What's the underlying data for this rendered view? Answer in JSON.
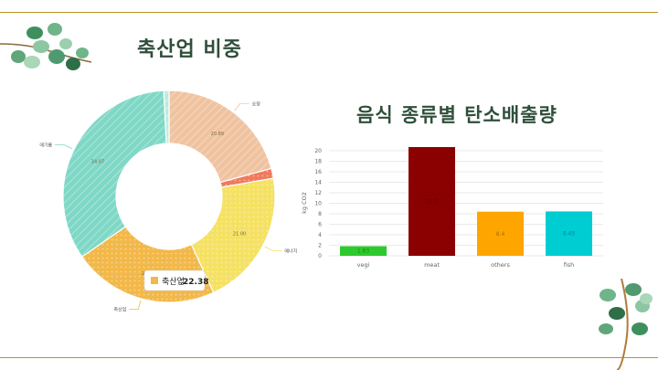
{
  "page": {
    "left_title": "축산업 비중",
    "right_title": "음식 종류별 탄소배출량"
  },
  "colors": {
    "rule": "#b8941f",
    "title": "#2f4f3a",
    "leaf": "#4f9a6e",
    "stem": "#b07a3a"
  },
  "icons": [
    "eucalyptus-branch-top-left",
    "eucalyptus-branch-bottom-right"
  ],
  "chart_data": [
    {
      "type": "pie",
      "donut": true,
      "title": "",
      "slices": [
        {
          "label": "요정",
          "value": 20.89,
          "value_label": "20.89",
          "color": "#f0c3a0",
          "pattern": "hatch"
        },
        {
          "label": "",
          "value": 1.5,
          "value_label": "",
          "color": "#f07a5e",
          "pattern": "dots"
        },
        {
          "label": "메너지",
          "value": 21.0,
          "value_label": "21.00",
          "color": "#f5e163",
          "pattern": "dots"
        },
        {
          "label": "축산업",
          "value": 22.38,
          "value_label": "22.38",
          "color": "#f2b84a",
          "pattern": "dots"
        },
        {
          "label": "에기름",
          "value": 34.07,
          "value_label": "34.07",
          "color": "#7fd8c6",
          "pattern": "hatch"
        },
        {
          "label": "",
          "value": 0.8,
          "value_label": "",
          "color": "#bde9df",
          "pattern": "hatch"
        }
      ],
      "tooltip": {
        "label": "축산업",
        "value": "22.38",
        "color": "#f2b84a"
      }
    },
    {
      "type": "bar",
      "title": "",
      "categories": [
        "vegi",
        "meat",
        "others",
        "fish"
      ],
      "values": [
        1.83,
        20.7,
        8.4,
        8.45
      ],
      "value_labels": [
        "1.83",
        "20.7",
        "8.4",
        "8.45"
      ],
      "colors": [
        "#2ec92e",
        "#8b0000",
        "#ffa500",
        "#00cdd2"
      ],
      "xlabel": "",
      "ylabel": "kg CO2",
      "ylim": [
        0,
        20
      ],
      "yticks": [
        "0",
        "2",
        "4",
        "6",
        "8",
        "10",
        "12",
        "14",
        "16",
        "18",
        "20"
      ],
      "grid": true
    }
  ]
}
